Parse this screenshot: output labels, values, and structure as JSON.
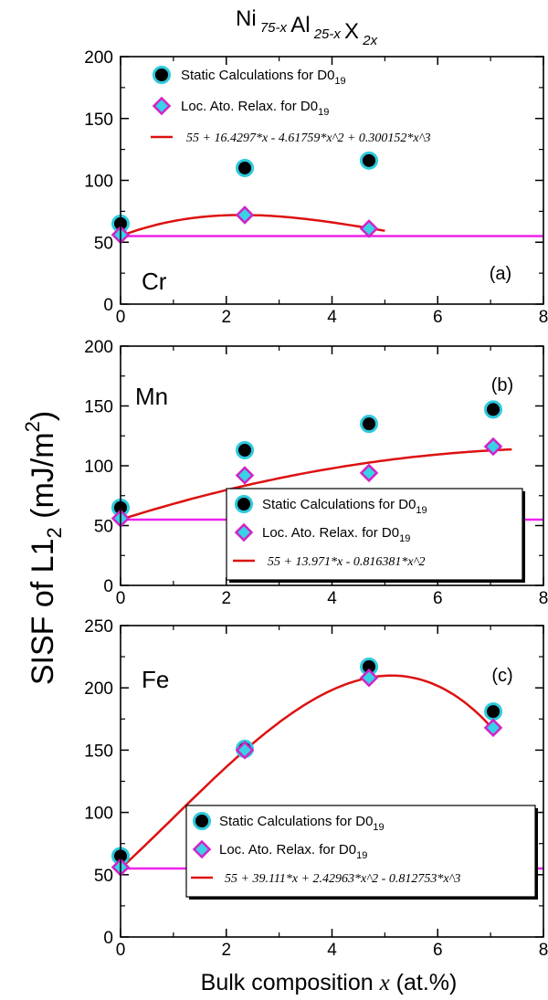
{
  "chart_data": {
    "type": "scatter",
    "suptitle": {
      "main": [
        "Ni",
        "Al",
        "X"
      ],
      "subs": [
        "75-x",
        "25-x",
        "2x"
      ]
    },
    "ylabel": {
      "main": "SISF of L1",
      "sub": "2",
      "units_open": " (mJ/m",
      "units_sup": "2",
      "units_close": ")"
    },
    "xlabel": {
      "main": "Bulk composition ",
      "var": "x",
      "units": " (at.%)"
    },
    "colors": {
      "static_fill": "#000000",
      "static_ring": "#2ec9dd",
      "relax_fill": "#39d1e6",
      "relax_edge": "#d222c8",
      "fit_line": "#dd1111",
      "ref_line": "#ee22ee"
    },
    "legend_labels": {
      "static": "Static Calculations for D0",
      "static_sub": "19",
      "relax": "Loc. Ato. Relax.  for D0",
      "relax_sub": "19"
    },
    "panels": [
      {
        "element": "Cr",
        "tag": "(a)",
        "xlim": [
          0,
          8
        ],
        "ylim": [
          0,
          200
        ],
        "xticks": [
          0,
          2,
          4,
          6,
          8
        ],
        "yticks": [
          0,
          50,
          100,
          150,
          200
        ],
        "grid": false,
        "legend_placement": "top-left",
        "legend_framed": false,
        "fit_label": "55 + 16.4297*x - 4.61759*x^2 + 0.300152*x^3",
        "fit_coeffs": [
          55,
          16.4297,
          -4.61759,
          0.300152
        ],
        "fit_range": [
          0,
          5
        ],
        "reference_y": 55,
        "static": {
          "x": [
            0,
            2.35,
            4.7
          ],
          "y": [
            65,
            110,
            116
          ]
        },
        "relax": {
          "x": [
            0,
            2.35,
            4.7
          ],
          "y": [
            56,
            72,
            61
          ]
        }
      },
      {
        "element": "Mn",
        "tag": "(b)",
        "xlim": [
          0,
          8
        ],
        "ylim": [
          0,
          200
        ],
        "xticks": [
          0,
          2,
          4,
          6,
          8
        ],
        "yticks": [
          0,
          50,
          100,
          150,
          200
        ],
        "grid": false,
        "legend_placement": "bottom-right",
        "legend_framed": true,
        "fit_label": "55 + 13.971*x - 0.816381*x^2",
        "fit_coeffs": [
          55,
          13.971,
          -0.816381
        ],
        "fit_range": [
          0,
          7.4
        ],
        "reference_y": 55,
        "static": {
          "x": [
            0,
            2.35,
            4.7,
            7.05
          ],
          "y": [
            65,
            113,
            135,
            147
          ]
        },
        "relax": {
          "x": [
            0,
            2.35,
            4.7,
            7.05
          ],
          "y": [
            56,
            92,
            94,
            116
          ]
        }
      },
      {
        "element": "Fe",
        "tag": "(c)",
        "xlim": [
          0,
          8
        ],
        "ylim": [
          0,
          250
        ],
        "xticks": [
          0,
          2,
          4,
          6,
          8
        ],
        "yticks": [
          0,
          50,
          100,
          150,
          200,
          250
        ],
        "grid": false,
        "legend_placement": "bottom-right",
        "legend_framed": true,
        "fit_label": "55 + 39.111*x + 2.42963*x^2 - 0.812753*x^3",
        "fit_coeffs": [
          55,
          39.111,
          2.42963,
          -0.812753
        ],
        "fit_range": [
          0,
          7.1
        ],
        "reference_y": 55,
        "static": {
          "x": [
            0,
            2.35,
            4.7,
            7.05
          ],
          "y": [
            65,
            151,
            217,
            181
          ]
        },
        "relax": {
          "x": [
            0,
            2.35,
            4.7,
            7.05
          ],
          "y": [
            56,
            150,
            208,
            168
          ]
        }
      }
    ]
  }
}
